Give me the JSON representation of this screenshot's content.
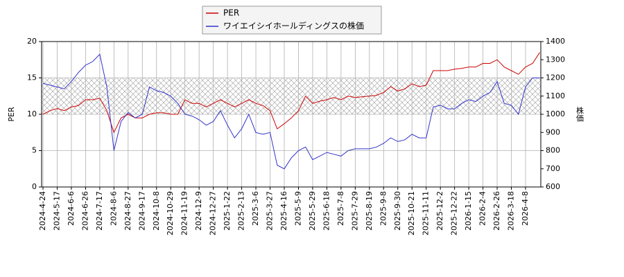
{
  "chart_data": {
    "type": "line",
    "categories": [
      "2024-4-24",
      null,
      "2024-5-17",
      null,
      "2024-6-6",
      null,
      "2024-6-26",
      null,
      "2024-7-17",
      null,
      "2024-8-6",
      null,
      "2024-8-27",
      null,
      "2024-9-17",
      null,
      "2024-10-8",
      null,
      "2024-10-29",
      null,
      "2024-11-19",
      null,
      "2024-12-9",
      null,
      "2024-12-27",
      null,
      "2025-1-22",
      null,
      "2025-2-13",
      null,
      "2025-3-6",
      null,
      "2025-3-27",
      null,
      "2025-4-16",
      null,
      "2025-5-9",
      null,
      "2025-5-29",
      null,
      "2025-6-18",
      null,
      "2025-7-8",
      null,
      "2025-7-29",
      null,
      "2025-8-19",
      null,
      "2025-9-8",
      null,
      "2025-9-30",
      null,
      "2025-10-21",
      null,
      "2025-11-11",
      null,
      "2025-12-2",
      null,
      "2025-12-22",
      null,
      "2026-1-15",
      null,
      "2026-2-4",
      null,
      "2026-2-26",
      null,
      "2026-3-18",
      null,
      "2026-4-8",
      null,
      null
    ],
    "series": [
      {
        "name": "PER",
        "color": "#cc0000",
        "axis": "y",
        "values": [
          10,
          10.5,
          10.8,
          10.5,
          11,
          11.2,
          12,
          12,
          12.2,
          10.5,
          7.5,
          9.5,
          10,
          9.5,
          9.5,
          10,
          10.2,
          10.2,
          10,
          10,
          12,
          11.5,
          11.5,
          11,
          11.5,
          12,
          11.5,
          11,
          11.5,
          12,
          11.5,
          11.2,
          10.5,
          8,
          8.7,
          9.5,
          10.5,
          12.5,
          11.5,
          11.8,
          12,
          12.3,
          12,
          12.5,
          12.3,
          12.4,
          12.5,
          12.6,
          13,
          13.8,
          13.2,
          13.5,
          14.2,
          13.8,
          14,
          16,
          16,
          16,
          16.2,
          16.3,
          16.5,
          16.5,
          17,
          17,
          17.5,
          16.5,
          16,
          15.5,
          16.5,
          17,
          18.5
        ]
      },
      {
        "name": "ワイエイシイホールディングスの株価",
        "color": "#3333cc",
        "axis": "y2",
        "values": [
          1170,
          1160,
          1150,
          1140,
          1180,
          1230,
          1270,
          1290,
          1330,
          1150,
          800,
          960,
          1010,
          980,
          1000,
          1150,
          1130,
          1120,
          1100,
          1060,
          1000,
          990,
          970,
          940,
          960,
          1020,
          940,
          870,
          920,
          1000,
          900,
          890,
          900,
          720,
          700,
          760,
          800,
          820,
          750,
          770,
          790,
          780,
          770,
          800,
          810,
          810,
          810,
          820,
          840,
          870,
          850,
          860,
          890,
          870,
          870,
          1040,
          1050,
          1030,
          1030,
          1060,
          1080,
          1070,
          1100,
          1120,
          1180,
          1060,
          1050,
          1000,
          1150,
          1200,
          1200
        ]
      }
    ],
    "ylabel": "PER",
    "y2label": "株価",
    "ylim": [
      0,
      20
    ],
    "yticks": [
      0,
      5,
      10,
      15,
      20
    ],
    "y2lim": [
      600,
      1400
    ],
    "y2ticks": [
      600,
      700,
      800,
      900,
      1000,
      1100,
      1200,
      1300,
      1400
    ],
    "shaded_band": [
      10,
      15
    ],
    "grid": true,
    "legend": "upper center"
  }
}
